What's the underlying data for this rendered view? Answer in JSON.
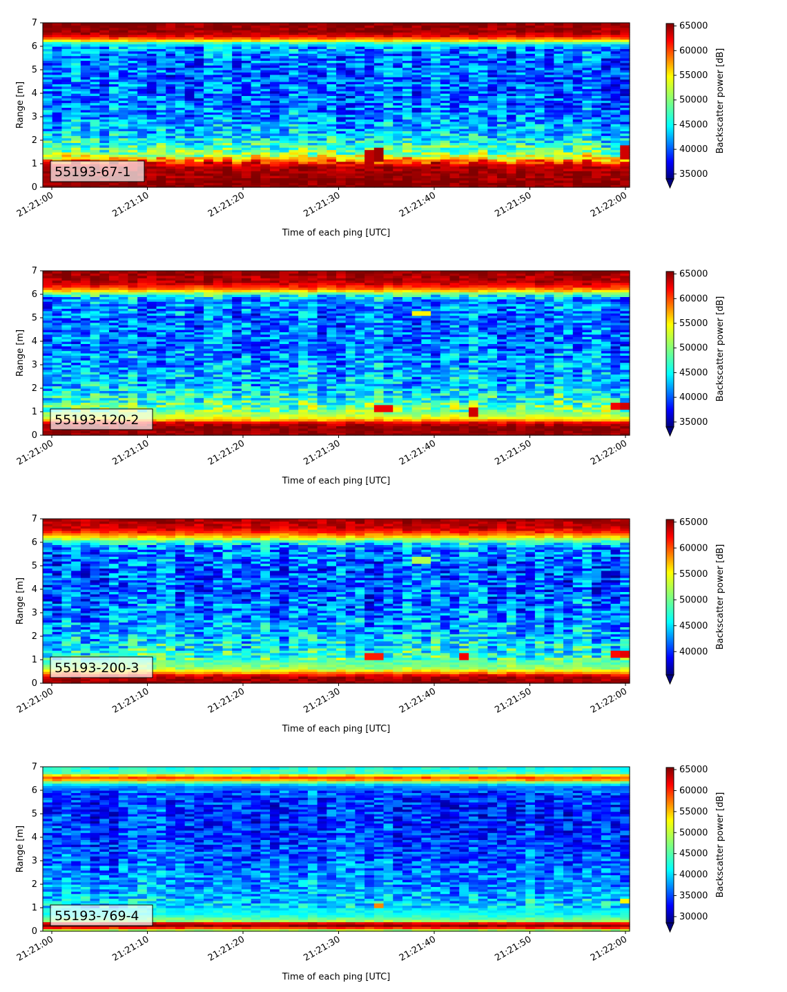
{
  "chart_data": [
    {
      "type": "heatmap",
      "label": "55193-67-1",
      "xlabel": "Time of each ping [UTC]",
      "ylabel": "Range [m]",
      "colorbar_label": "Backscatter power [dB]",
      "colormap": "jet",
      "x_ticks": [
        "21:21:00",
        "21:21:10",
        "21:21:20",
        "21:21:30",
        "21:21:40",
        "21:21:50",
        "21:22:00"
      ],
      "y_ticks": [
        "0",
        "1",
        "2",
        "3",
        "4",
        "5",
        "6",
        "7"
      ],
      "ylim": [
        0,
        7
      ],
      "colorbar_ticks": [
        "35000",
        "40000",
        "45000",
        "50000",
        "55000",
        "60000",
        "65000"
      ],
      "color_range": [
        34000,
        65500
      ],
      "profile": [
        [
          0.0,
          65000
        ],
        [
          0.25,
          65000
        ],
        [
          0.55,
          64500
        ],
        [
          0.85,
          64000
        ],
        [
          1.05,
          61000
        ],
        [
          1.2,
          56000
        ],
        [
          1.45,
          50000
        ],
        [
          1.8,
          47000
        ],
        [
          2.3,
          44000
        ],
        [
          3.0,
          42000
        ],
        [
          4.0,
          41000
        ],
        [
          5.0,
          41000
        ],
        [
          5.7,
          41500
        ],
        [
          6.0,
          43000
        ],
        [
          6.15,
          48000
        ],
        [
          6.3,
          57000
        ],
        [
          6.45,
          62000
        ],
        [
          6.6,
          64500
        ],
        [
          7.0,
          65000
        ]
      ],
      "hotspots": [
        {
          "t": 33,
          "y0": 1.15,
          "y1": 1.6,
          "value": 63500
        },
        {
          "t": 34,
          "y0": 1.15,
          "y1": 1.65,
          "value": 64500
        },
        {
          "t": 60,
          "y0": 1.2,
          "y1": 1.75,
          "value": 63000
        }
      ]
    },
    {
      "type": "heatmap",
      "label": "55193-120-2",
      "xlabel": "Time of each ping [UTC]",
      "ylabel": "Range [m]",
      "colorbar_label": "Backscatter power [dB]",
      "colormap": "jet",
      "x_ticks": [
        "21:21:00",
        "21:21:10",
        "21:21:20",
        "21:21:30",
        "21:21:40",
        "21:21:50",
        "21:22:00"
      ],
      "y_ticks": [
        "0",
        "1",
        "2",
        "3",
        "4",
        "5",
        "6",
        "7"
      ],
      "ylim": [
        0,
        7
      ],
      "colorbar_ticks": [
        "35000",
        "40000",
        "45000",
        "50000",
        "55000",
        "60000",
        "65000"
      ],
      "color_range": [
        34000,
        65500
      ],
      "profile": [
        [
          0.0,
          65000
        ],
        [
          0.4,
          65000
        ],
        [
          0.55,
          62000
        ],
        [
          0.7,
          54000
        ],
        [
          0.9,
          51000
        ],
        [
          1.2,
          49000
        ],
        [
          1.6,
          46500
        ],
        [
          2.2,
          44000
        ],
        [
          3.0,
          42500
        ],
        [
          4.0,
          41500
        ],
        [
          5.0,
          41500
        ],
        [
          5.8,
          42500
        ],
        [
          6.0,
          47000
        ],
        [
          6.1,
          53000
        ],
        [
          6.3,
          60000
        ],
        [
          6.5,
          63500
        ],
        [
          7.0,
          65000
        ]
      ],
      "hotspots": [
        {
          "t": 34,
          "y0": 1.0,
          "y1": 1.25,
          "value": 62000
        },
        {
          "t": 35,
          "y0": 1.0,
          "y1": 1.25,
          "value": 62000
        },
        {
          "t": 44,
          "y0": 0.85,
          "y1": 1.15,
          "value": 63000
        },
        {
          "t": 38,
          "y0": 5.1,
          "y1": 5.3,
          "value": 54000
        },
        {
          "t": 39,
          "y0": 5.1,
          "y1": 5.3,
          "value": 54000
        },
        {
          "t": 59,
          "y0": 1.15,
          "y1": 1.45,
          "value": 62000
        },
        {
          "t": 60,
          "y0": 1.15,
          "y1": 1.45,
          "value": 63000
        }
      ]
    },
    {
      "type": "heatmap",
      "label": "55193-200-3",
      "xlabel": "Time of each ping [UTC]",
      "ylabel": "Range [m]",
      "colorbar_label": "Backscatter power [dB]",
      "colormap": "jet",
      "x_ticks": [
        "21:21:00",
        "21:21:10",
        "21:21:20",
        "21:21:30",
        "21:21:40",
        "21:21:50",
        "21:22:00"
      ],
      "y_ticks": [
        "0",
        "1",
        "2",
        "3",
        "4",
        "5",
        "6",
        "7"
      ],
      "ylim": [
        0,
        7
      ],
      "colorbar_ticks": [
        "40000",
        "45000",
        "50000",
        "55000",
        "60000",
        "65000"
      ],
      "color_range": [
        35500,
        65500
      ],
      "profile": [
        [
          0.0,
          65000
        ],
        [
          0.3,
          64000
        ],
        [
          0.45,
          58000
        ],
        [
          0.6,
          52000
        ],
        [
          0.9,
          49500
        ],
        [
          1.3,
          47500
        ],
        [
          2.0,
          45000
        ],
        [
          3.0,
          43000
        ],
        [
          4.0,
          42000
        ],
        [
          5.0,
          42000
        ],
        [
          5.8,
          43000
        ],
        [
          6.0,
          47000
        ],
        [
          6.2,
          54000
        ],
        [
          6.4,
          60000
        ],
        [
          6.6,
          63000
        ],
        [
          7.0,
          64500
        ]
      ],
      "hotspots": [
        {
          "t": 33,
          "y0": 1.0,
          "y1": 1.25,
          "value": 61000
        },
        {
          "t": 34,
          "y0": 1.05,
          "y1": 1.25,
          "value": 61000
        },
        {
          "t": 43,
          "y0": 1.05,
          "y1": 1.3,
          "value": 62000
        },
        {
          "t": 38,
          "y0": 5.15,
          "y1": 5.35,
          "value": 52000
        },
        {
          "t": 39,
          "y0": 5.15,
          "y1": 5.35,
          "value": 52000
        },
        {
          "t": 59,
          "y0": 1.15,
          "y1": 1.4,
          "value": 61500
        },
        {
          "t": 60,
          "y0": 1.15,
          "y1": 1.4,
          "value": 62500
        }
      ]
    },
    {
      "type": "heatmap",
      "label": "55193-769-4",
      "xlabel": "Time of each ping [UTC]",
      "ylabel": "Range [m]",
      "colorbar_label": "Backscatter power [dB]",
      "colormap": "jet",
      "x_ticks": [
        "21:21:00",
        "21:21:10",
        "21:21:20",
        "21:21:30",
        "21:21:40",
        "21:21:50",
        "21:22:00"
      ],
      "y_ticks": [
        "0",
        "1",
        "2",
        "3",
        "4",
        "5",
        "6",
        "7"
      ],
      "ylim": [
        0,
        7
      ],
      "colorbar_ticks": [
        "30000",
        "35000",
        "40000",
        "45000",
        "50000",
        "55000",
        "60000",
        "65000"
      ],
      "color_range": [
        28500,
        65500
      ],
      "profile": [
        [
          0.0,
          42000
        ],
        [
          0.12,
          58000
        ],
        [
          0.25,
          65000
        ],
        [
          0.35,
          62000
        ],
        [
          0.45,
          48000
        ],
        [
          0.7,
          43000
        ],
        [
          1.2,
          41000
        ],
        [
          2.0,
          39000
        ],
        [
          3.0,
          37000
        ],
        [
          4.0,
          35500
        ],
        [
          5.0,
          35000
        ],
        [
          5.8,
          35500
        ],
        [
          6.2,
          38000
        ],
        [
          6.4,
          50000
        ],
        [
          6.5,
          60000
        ],
        [
          6.6,
          56000
        ],
        [
          6.75,
          45000
        ],
        [
          7.0,
          43000
        ]
      ],
      "hotspots": [
        {
          "t": 34,
          "y0": 1.0,
          "y1": 1.15,
          "value": 56000
        },
        {
          "t": 60,
          "y0": 1.2,
          "y1": 1.4,
          "value": 52000
        }
      ]
    }
  ]
}
